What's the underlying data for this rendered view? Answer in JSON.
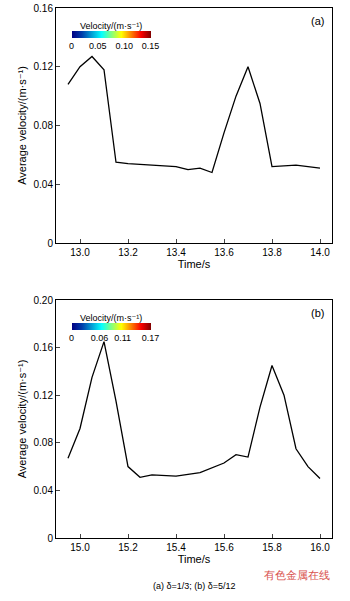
{
  "chart_data": [
    {
      "type": "line",
      "panel_label": "(a)",
      "xlabel": "Time/s",
      "ylabel": "Average velocity/(m·s⁻¹)",
      "color": "#000000",
      "x": [
        12.95,
        13.0,
        13.05,
        13.1,
        13.15,
        13.2,
        13.3,
        13.4,
        13.45,
        13.5,
        13.55,
        13.6,
        13.65,
        13.7,
        13.75,
        13.8,
        13.9,
        14.0
      ],
      "values": [
        0.108,
        0.12,
        0.127,
        0.118,
        0.055,
        0.054,
        0.053,
        0.052,
        0.05,
        0.051,
        0.048,
        0.075,
        0.1,
        0.12,
        0.095,
        0.052,
        0.053,
        0.051
      ],
      "xlim": [
        12.9,
        14.05
      ],
      "xticks": [
        {
          "value": 13.0,
          "label": "13.0"
        },
        13.2,
        13.4,
        13.6,
        13.8,
        {
          "value": 14.0,
          "label": "14.0"
        }
      ],
      "ylim": [
        0,
        0.16
      ],
      "yticks": [
        0,
        0.04,
        0.08,
        0.12,
        0.16
      ],
      "colorbar": {
        "title": "Velocity/(m·s⁻¹)",
        "range": [
          0,
          0.15
        ],
        "ticks": [
          0,
          0.05,
          {
            "value": 0.1,
            "label": "0.10"
          },
          0.15
        ]
      }
    },
    {
      "type": "line",
      "panel_label": "(b)",
      "xlabel": "Time/s",
      "ylabel": "Average velocity/(m·s⁻¹)",
      "color": "#000000",
      "x": [
        14.95,
        15.0,
        15.05,
        15.1,
        15.15,
        15.2,
        15.25,
        15.3,
        15.4,
        15.5,
        15.6,
        15.65,
        15.7,
        15.75,
        15.8,
        15.85,
        15.9,
        15.95,
        16.0
      ],
      "values": [
        0.067,
        0.092,
        0.135,
        0.165,
        0.115,
        0.06,
        0.051,
        0.053,
        0.052,
        0.055,
        0.063,
        0.07,
        0.068,
        0.11,
        0.145,
        0.12,
        0.075,
        0.06,
        0.05
      ],
      "xlim": [
        14.9,
        16.05
      ],
      "xticks": [
        {
          "value": 15.0,
          "label": "15.0"
        },
        15.2,
        15.4,
        15.6,
        15.8,
        {
          "value": 16.0,
          "label": "16.0"
        }
      ],
      "ylim": [
        0,
        0.2
      ],
      "yticks": [
        0,
        0.04,
        0.08,
        0.12,
        0.16,
        {
          "value": 0.2,
          "label": "0.20"
        }
      ],
      "colorbar": {
        "title": "Velocity/(m·s⁻¹)",
        "range": [
          0,
          0.17
        ],
        "ticks": [
          0,
          0.06,
          0.11,
          0.17
        ]
      }
    }
  ],
  "caption": "(a) δ=1/3; (b) δ=5/12",
  "watermark": "有色金属在线"
}
